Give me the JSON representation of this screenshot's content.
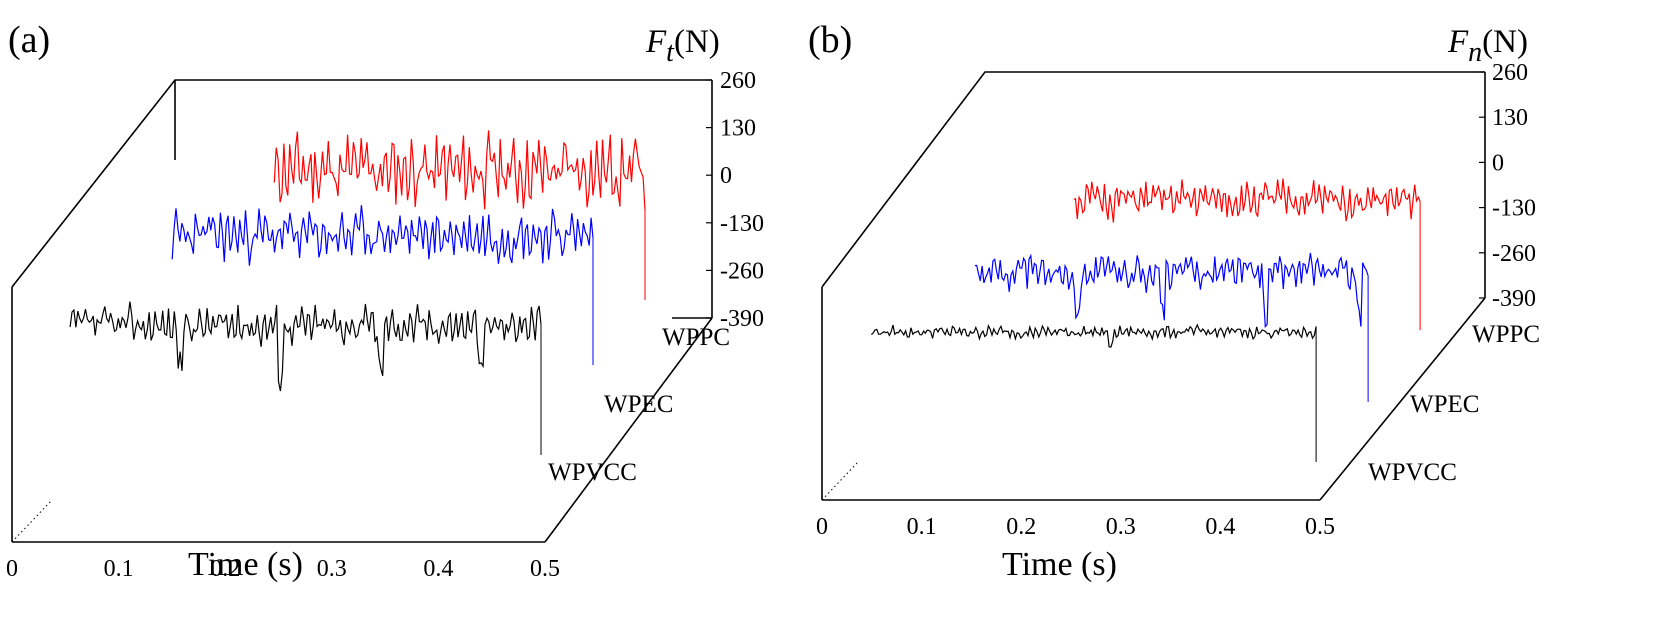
{
  "chart_data": [
    {
      "type": "line",
      "panel_label": "(a)",
      "ylabel_symbol": "F",
      "ylabel_subscript": "t",
      "ylabel_unit": "(N)",
      "xlabel": "Time (s)",
      "xlim": [
        0,
        0.5
      ],
      "x_ticks": [
        "0",
        "0.1",
        "0.2",
        "0.3",
        "0.4",
        "0.5"
      ],
      "ylim": [
        -390,
        260
      ],
      "y_ticks": [
        "260",
        "130",
        "0",
        "-130",
        "-260",
        "-390"
      ],
      "series": [
        {
          "name": "WPPC",
          "color": "#ff0000",
          "x_start": 0.13,
          "x_end": 0.5,
          "mean": 0,
          "amplitude": 110,
          "dips": [],
          "seed": 11
        },
        {
          "name": "WPEC",
          "color": "#0000ff",
          "x_start": 0.08,
          "x_end": 0.5,
          "mean": 0,
          "amplitude": 80,
          "dips": [],
          "seed": 23
        },
        {
          "name": "WPVCC",
          "color": "#000000",
          "x_start": 0.03,
          "x_end": 0.5,
          "mean": 0,
          "amplitude": 60,
          "dips": [
            0.14,
            0.24,
            0.34,
            0.44
          ],
          "seed": 37
        }
      ]
    },
    {
      "type": "line",
      "panel_label": "(b)",
      "ylabel_symbol": "F",
      "ylabel_subscript": "n",
      "ylabel_unit": "(N)",
      "xlabel": "Time (s)",
      "xlim": [
        0,
        0.5
      ],
      "x_ticks": [
        "0",
        "0.1",
        "0.2",
        "0.3",
        "0.4",
        "0.5"
      ],
      "ylim": [
        -390,
        260
      ],
      "y_ticks": [
        "260",
        "130",
        "0",
        "-130",
        "-260",
        "-390"
      ],
      "series": [
        {
          "name": "WPPC",
          "color": "#ff0000",
          "x_start": 0.13,
          "x_end": 0.5,
          "mean": 0,
          "amplitude": 55,
          "dips": [],
          "seed": 51
        },
        {
          "name": "WPEC",
          "color": "#0000ff",
          "x_start": 0.08,
          "x_end": 0.5,
          "mean": 0,
          "amplitude": 50,
          "dips": [
            0.19,
            0.28,
            0.39,
            0.49
          ],
          "seed": 63
        },
        {
          "name": "WPVCC",
          "color": "#000000",
          "x_start": 0.025,
          "x_end": 0.5,
          "mean": 0,
          "amplitude": 18,
          "dips": [
            0.28
          ],
          "seed": 79
        }
      ]
    }
  ]
}
